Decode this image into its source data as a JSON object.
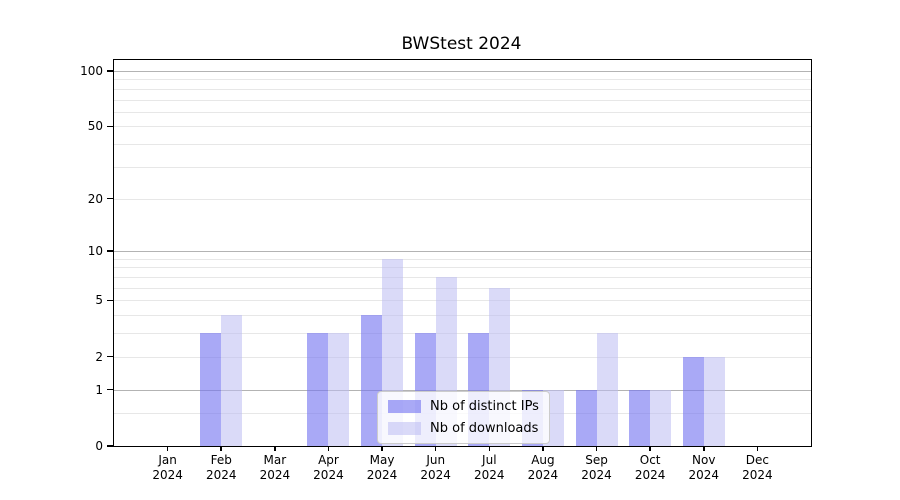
{
  "chart_data": {
    "type": "bar",
    "title": "BWStest 2024",
    "year": "2024",
    "categories": [
      "Jan",
      "Feb",
      "Mar",
      "Apr",
      "May",
      "Jun",
      "Jul",
      "Aug",
      "Sep",
      "Oct",
      "Nov",
      "Dec"
    ],
    "series": [
      {
        "name": "Nb of distinct IPs",
        "color": "rgba(116,116,240,0.62)",
        "values": [
          0,
          3,
          0,
          3,
          4,
          3,
          3,
          1,
          1,
          1,
          2,
          0
        ]
      },
      {
        "name": "Nb of downloads",
        "color": "rgba(187,187,242,0.55)",
        "values": [
          0,
          4,
          0,
          3,
          9,
          7,
          6,
          1,
          3,
          1,
          2,
          0
        ]
      }
    ],
    "yscale": "log1p",
    "ylim": [
      0,
      114.5
    ],
    "yticks": [
      0,
      1,
      2,
      5,
      10,
      20,
      50,
      100
    ],
    "y_major_gridlines": [
      1,
      10,
      100
    ],
    "y_minor_gridlines": [
      0.5,
      2,
      3,
      4,
      5,
      6,
      7,
      8,
      9,
      20,
      30,
      40,
      50,
      60,
      70,
      80,
      90
    ],
    "xlabel": "",
    "ylabel": "",
    "grid": true,
    "legend_position": "lower center"
  },
  "colors": {
    "grid_major": "#b3b3b3",
    "grid_minor": "#e7e7e7",
    "spine": "#000000",
    "text": "#000000",
    "background": "#ffffff",
    "bar_ips_rendered": "#aaaaf5",
    "bar_downloads_rendered": "#dadaf8"
  }
}
